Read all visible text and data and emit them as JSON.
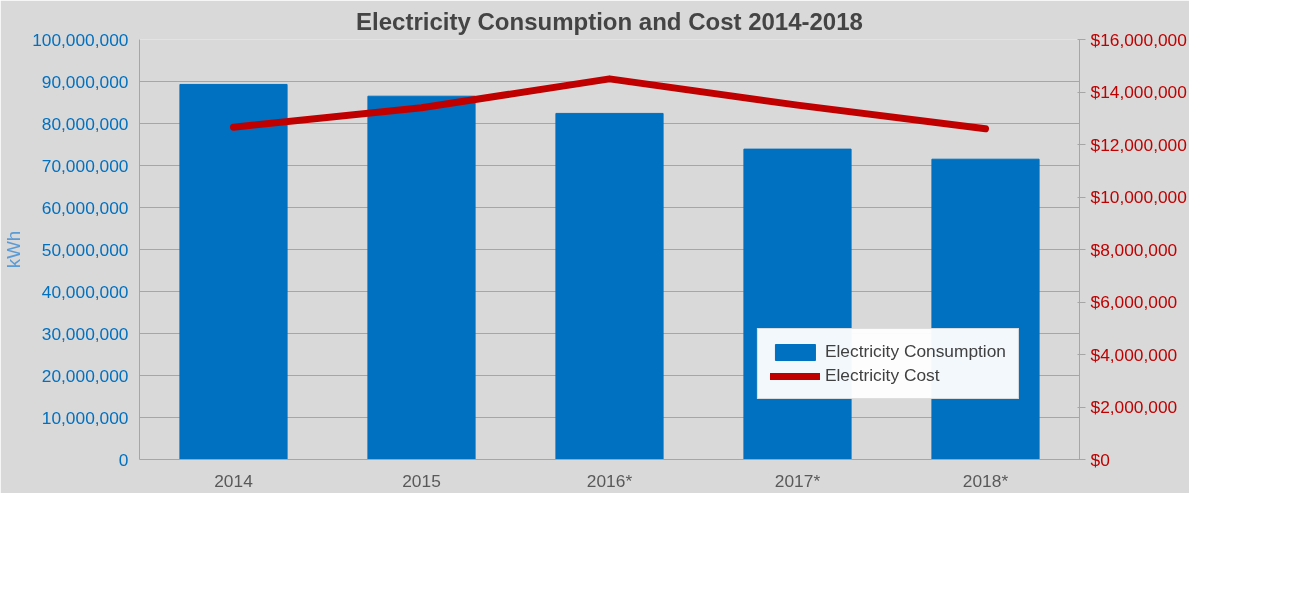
{
  "chart_data": {
    "type": "bar",
    "title": "Electricity Consumption and Cost 2014-2018",
    "ylabel": "kWh",
    "categories": [
      "2014",
      "2015",
      "2016*",
      "2017*",
      "2018*"
    ],
    "series": [
      {
        "name": "Electricity Consumption",
        "color": "#0070c0",
        "values": [
          89300000,
          86500000,
          82400000,
          73900000,
          71500000
        ]
      },
      {
        "name": "Electricity Cost",
        "type": "line",
        "axis": "y2",
        "color": "#c00000",
        "values": [
          12660000,
          13400000,
          14500000,
          13500000,
          12600000
        ]
      }
    ],
    "ylim": [
      0,
      100000000
    ],
    "yticks": [
      {
        "value": 0,
        "label": "0"
      },
      {
        "value": 10000000,
        "label": "10,000,000"
      },
      {
        "value": 20000000,
        "label": "20,000,000"
      },
      {
        "value": 30000000,
        "label": "30,000,000"
      },
      {
        "value": 40000000,
        "label": "40,000,000"
      },
      {
        "value": 50000000,
        "label": "50,000,000"
      },
      {
        "value": 60000000,
        "label": "60,000,000"
      },
      {
        "value": 70000000,
        "label": "70,000,000"
      },
      {
        "value": 80000000,
        "label": "80,000,000"
      },
      {
        "value": 90000000,
        "label": "90,000,000"
      },
      {
        "value": 100000000,
        "label": "100,000,000"
      }
    ],
    "y2lim": [
      0,
      16000000
    ],
    "y2ticks": [
      {
        "value": 0,
        "label": "$0"
      },
      {
        "value": 2000000,
        "label": "$2,000,000"
      },
      {
        "value": 4000000,
        "label": "$4,000,000"
      },
      {
        "value": 6000000,
        "label": "$6,000,000"
      },
      {
        "value": 8000000,
        "label": "$8,000,000"
      },
      {
        "value": 10000000,
        "label": "$10,000,000"
      },
      {
        "value": 12000000,
        "label": "$12,000,000"
      },
      {
        "value": 14000000,
        "label": "$14,000,000"
      },
      {
        "value": 16000000,
        "label": "$16,000,000"
      }
    ],
    "grid": "y",
    "legend": "bottom right",
    "marker": "none",
    "line_style": "solid"
  }
}
